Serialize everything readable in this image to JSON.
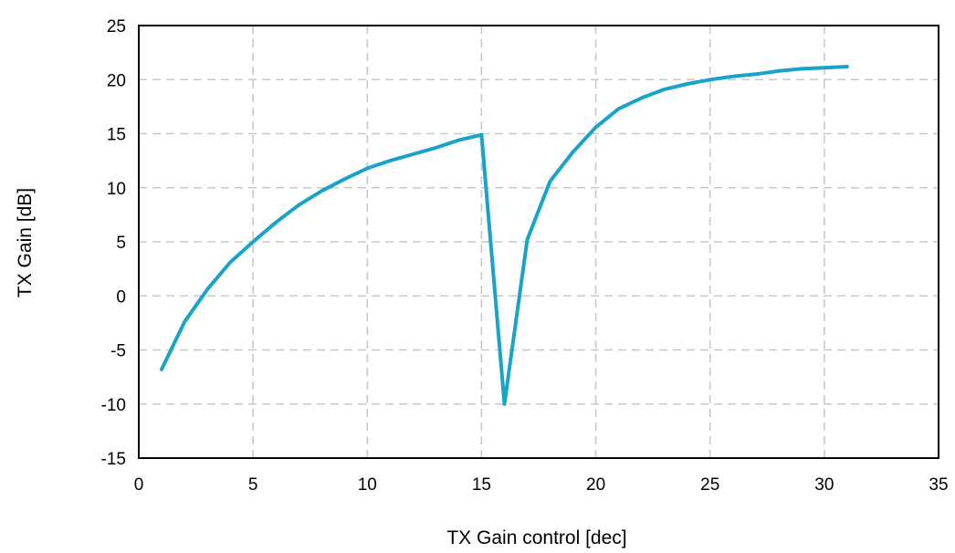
{
  "chart_data": {
    "type": "line",
    "xlabel": "TX Gain control [dec]",
    "ylabel": "TX Gain [dB]",
    "xlim": [
      0,
      35
    ],
    "ylim": [
      -15,
      25
    ],
    "xticks": [
      0,
      5,
      10,
      15,
      20,
      25,
      30,
      35
    ],
    "yticks": [
      -15,
      -10,
      -5,
      0,
      5,
      10,
      15,
      20,
      25
    ],
    "grid": true,
    "series": [
      {
        "color": "#1aa3c8",
        "x": [
          1,
          2,
          3,
          4,
          5,
          6,
          7,
          8,
          9,
          10,
          11,
          12,
          13,
          14,
          15,
          16,
          17,
          18,
          19,
          20,
          21,
          22,
          23,
          24,
          25,
          26,
          27,
          28,
          29,
          30,
          31
        ],
        "y": [
          -6.8,
          -2.4,
          0.6,
          3.1,
          5.0,
          6.8,
          8.4,
          9.7,
          10.8,
          11.8,
          12.5,
          13.1,
          13.7,
          14.4,
          14.9,
          -10.0,
          5.2,
          10.6,
          13.3,
          15.6,
          17.3,
          18.3,
          19.1,
          19.6,
          20.0,
          20.3,
          20.5,
          20.8,
          21.0,
          21.1,
          21.2
        ]
      }
    ]
  }
}
